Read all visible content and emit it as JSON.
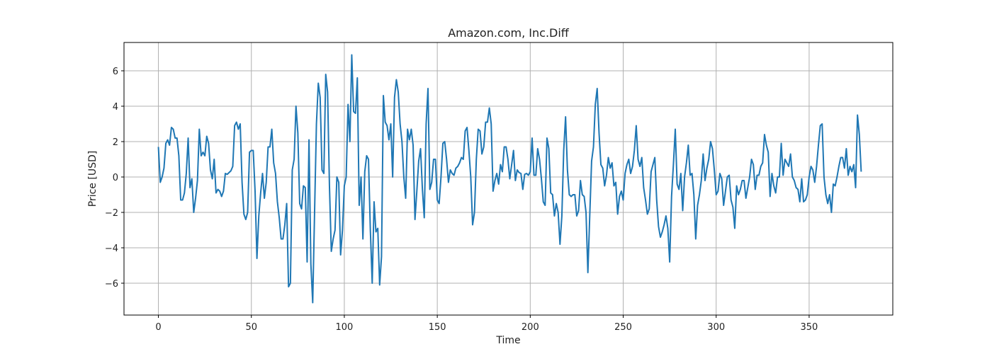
{
  "chart_data": {
    "type": "line",
    "title": "Amazon.com, Inc.Diff",
    "xlabel": "Time",
    "ylabel": "Price [USD]",
    "xlim": [
      -18.5,
      395
    ],
    "ylim": [
      -7.8,
      7.6
    ],
    "x_ticks": [
      0,
      50,
      100,
      150,
      200,
      250,
      300,
      350
    ],
    "y_ticks": [
      -6,
      -4,
      -2,
      0,
      2,
      4,
      6
    ],
    "grid": true,
    "legend": "none",
    "series": [
      {
        "color": "#1f77b4",
        "x_start": 0,
        "x_step": 1,
        "values": [
          1.7,
          -0.3,
          0.0,
          0.5,
          1.9,
          2.1,
          1.8,
          2.8,
          2.7,
          2.2,
          2.2,
          1.2,
          -1.3,
          -1.3,
          -0.9,
          0.2,
          2.2,
          -0.6,
          -0.1,
          -2.0,
          -1.2,
          -0.2,
          2.7,
          1.2,
          1.4,
          1.2,
          2.3,
          1.9,
          0.4,
          -0.1,
          1.0,
          -0.9,
          -0.7,
          -0.8,
          -1.1,
          -0.8,
          0.2,
          0.15,
          0.25,
          0.35,
          0.6,
          2.9,
          3.1,
          2.7,
          3.0,
          -0.3,
          -2.1,
          -2.4,
          -2.0,
          1.4,
          1.5,
          1.5,
          -0.8,
          -4.6,
          -2.2,
          -0.9,
          0.2,
          -1.2,
          -0.3,
          1.7,
          1.7,
          2.7,
          0.8,
          0.2,
          -1.4,
          -2.3,
          -3.5,
          -3.5,
          -2.7,
          -1.5,
          -6.2,
          -6.0,
          0.4,
          1.0,
          4.0,
          2.5,
          -1.5,
          -1.8,
          -0.5,
          -0.6,
          -4.8,
          2.1,
          -4.9,
          -7.1,
          -2.0,
          3.0,
          5.3,
          4.5,
          0.4,
          0.2,
          5.8,
          4.8,
          -0.5,
          -4.2,
          -3.5,
          -3.0,
          0.0,
          -0.3,
          -4.4,
          -3.0,
          -0.5,
          0.0,
          4.1,
          2.0,
          6.9,
          3.7,
          3.6,
          5.6,
          -1.6,
          0.0,
          -3.5,
          0.3,
          1.2,
          1.0,
          -3.0,
          -6.0,
          -1.4,
          -3.1,
          -2.9,
          -6.1,
          -4.5,
          4.6,
          3.1,
          2.9,
          2.1,
          3.0,
          0.0,
          4.5,
          5.5,
          4.8,
          3.0,
          2.0,
          0.0,
          -1.2,
          2.7,
          2.1,
          2.7,
          1.8,
          -2.4,
          -0.8,
          0.9,
          1.6,
          -0.7,
          -2.3,
          3.0,
          5.0,
          -0.7,
          -0.3,
          1.0,
          1.0,
          -1.3,
          -1.5,
          0.0,
          1.9,
          2.0,
          1.0,
          -0.3,
          0.4,
          0.2,
          0.1,
          0.5,
          0.6,
          0.8,
          1.1,
          1.0,
          2.6,
          2.8,
          1.5,
          0.0,
          -2.7,
          -2.0,
          1.0,
          2.7,
          2.6,
          1.3,
          1.7,
          3.1,
          3.1,
          3.9,
          3.0,
          -0.8,
          -0.2,
          0.2,
          -0.4,
          0.7,
          0.3,
          1.7,
          1.7,
          1.0,
          -0.1,
          0.7,
          1.5,
          -0.2,
          0.4,
          0.25,
          0.2,
          -0.7,
          0.15,
          0.2,
          0.1,
          0.3,
          2.2,
          0.1,
          0.1,
          1.6,
          1.0,
          -0.1,
          -1.4,
          -1.6,
          2.2,
          1.6,
          -0.9,
          -1.0,
          -2.2,
          -1.5,
          -2.0,
          -3.8,
          -2.2,
          1.5,
          3.4,
          0.4,
          -1.0,
          -1.1,
          -1.0,
          -1.0,
          -2.2,
          -1.9,
          -0.2,
          -1.0,
          -1.1,
          -2.0,
          -5.4,
          -2.2,
          0.9,
          1.7,
          4.1,
          5.0,
          2.5,
          0.7,
          0.5,
          -0.5,
          0.1,
          1.1,
          0.5,
          0.8,
          -0.5,
          -0.3,
          -2.1,
          -1.1,
          -0.8,
          -1.3,
          0.2,
          0.7,
          1.0,
          0.2,
          0.6,
          1.5,
          2.9,
          1.0,
          0.6,
          1.1,
          -0.6,
          -1.3,
          -2.1,
          -1.8,
          0.3,
          0.7,
          1.1,
          -1.3,
          -2.8,
          -3.4,
          -3.1,
          -2.7,
          -2.2,
          -2.9,
          -4.8,
          -1.1,
          0.7,
          2.7,
          -0.4,
          -0.7,
          0.2,
          -1.9,
          0.0,
          0.8,
          1.8,
          0.1,
          0.2,
          -1.0,
          -3.5,
          -1.6,
          -1.0,
          -0.2,
          1.3,
          -0.2,
          0.5,
          1.0,
          2.0,
          1.6,
          0.4,
          -1.0,
          -0.8,
          0.2,
          -0.1,
          -1.6,
          -0.8,
          0.0,
          0.1,
          -1.3,
          -1.7,
          -2.9,
          -0.5,
          -1.0,
          -0.7,
          -0.2,
          -0.2,
          -1.2,
          -0.6,
          0.0,
          1.0,
          0.7,
          -0.7,
          0.1,
          0.1,
          0.6,
          0.8,
          2.4,
          1.8,
          1.4,
          -1.1,
          0.2,
          -0.5,
          -0.9,
          0.0,
          0.0,
          1.9,
          0.1,
          1.0,
          0.8,
          0.6,
          1.3,
          0.0,
          -0.2,
          -0.6,
          -0.7,
          -1.4,
          -0.1,
          -1.4,
          -1.3,
          -1.0,
          0.0,
          0.6,
          0.4,
          -0.3,
          0.6,
          1.8,
          2.9,
          3.0,
          0.0,
          -1.0,
          -1.5,
          -1.0,
          -2.0,
          -0.4,
          -0.5,
          0.0,
          0.6,
          1.1,
          1.1,
          0.5,
          1.6,
          0.1,
          0.6,
          0.3,
          0.7,
          -0.6,
          3.5,
          2.4,
          0.3
        ]
      }
    ]
  }
}
